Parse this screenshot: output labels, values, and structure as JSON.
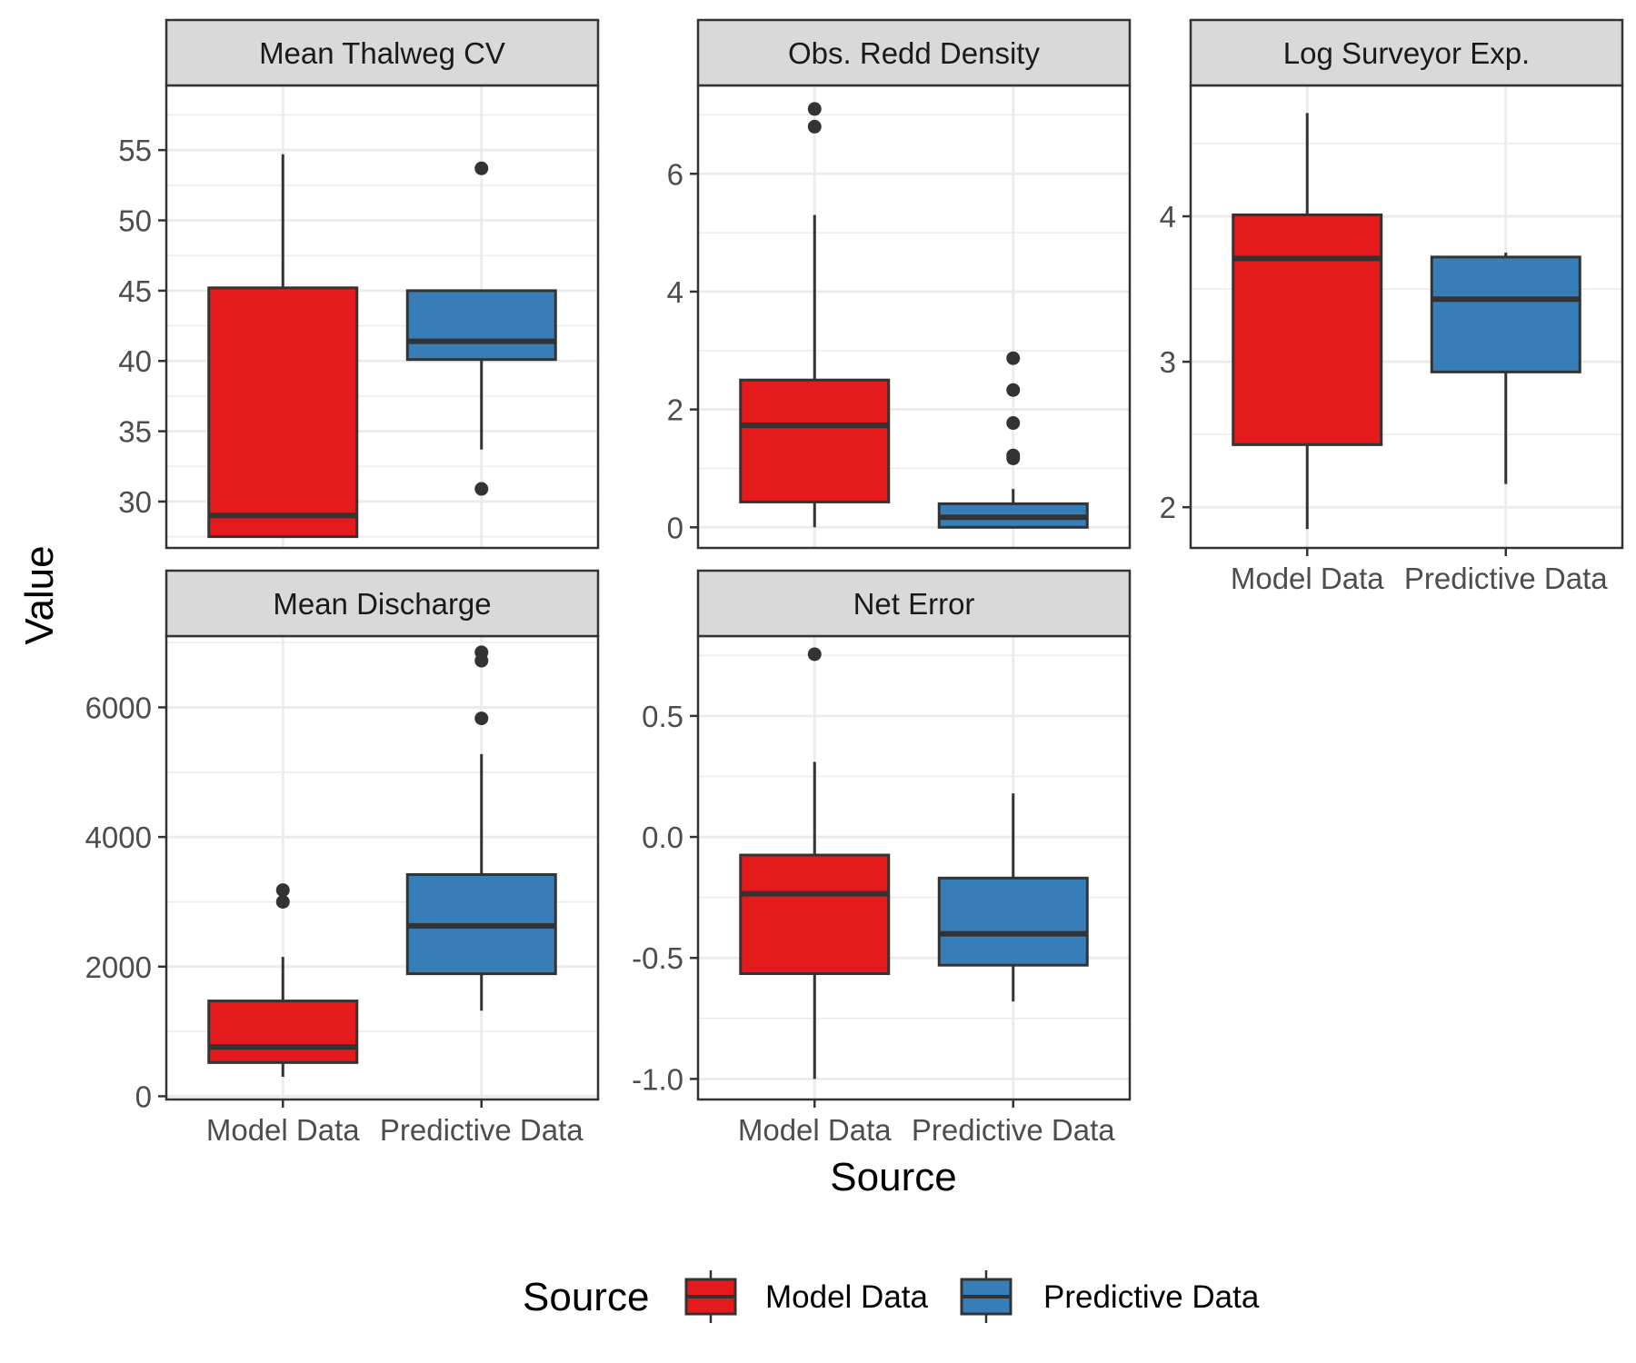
{
  "colors": {
    "model": "#e41a1c",
    "predictive": "#377eb8",
    "outline": "#333333",
    "strip_fill": "#d9d9d9",
    "grid": "#ebebeb"
  },
  "axes": {
    "xlabel": "Source",
    "ylabel": "Value"
  },
  "legend": {
    "title": "Source",
    "position": "bottom",
    "items": [
      {
        "label": "Model Data",
        "color": "#e41a1c"
      },
      {
        "label": "Predictive Data",
        "color": "#377eb8"
      }
    ]
  },
  "chart_data": {
    "type": "boxplot",
    "layout": "facet-wrap 3x2, free y scales",
    "grid": true,
    "categories": [
      "Model Data",
      "Predictive Data"
    ],
    "panels": [
      {
        "title": "Mean Thalweg CV",
        "ylim": [
          26.7,
          59.6
        ],
        "ticks": [
          30,
          35,
          40,
          45,
          50,
          55
        ],
        "tick_labels": [
          "30",
          "35",
          "40",
          "45",
          "50",
          "55"
        ],
        "show_x_labels": false,
        "boxes": [
          {
            "name": "Model Data",
            "lower_whisker": 27.5,
            "q1": 27.5,
            "median": 29.0,
            "q3": 45.2,
            "upper_whisker": 54.7,
            "outliers": []
          },
          {
            "name": "Predictive Data",
            "lower_whisker": 33.7,
            "q1": 40.1,
            "median": 41.4,
            "q3": 45.0,
            "upper_whisker": 45.0,
            "outliers": [
              53.7,
              30.9
            ]
          }
        ]
      },
      {
        "title": "Obs. Redd Density",
        "ylim": [
          -0.35,
          7.5
        ],
        "ticks": [
          0,
          2,
          4,
          6
        ],
        "tick_labels": [
          "0",
          "2",
          "4",
          "6"
        ],
        "show_x_labels": false,
        "boxes": [
          {
            "name": "Model Data",
            "lower_whisker": 0.0,
            "q1": 0.43,
            "median": 1.73,
            "q3": 2.5,
            "upper_whisker": 5.3,
            "outliers": [
              7.1,
              6.8
            ]
          },
          {
            "name": "Predictive Data",
            "lower_whisker": 0.0,
            "q1": 0.0,
            "median": 0.17,
            "q3": 0.4,
            "upper_whisker": 0.65,
            "outliers": [
              2.87,
              2.33,
              1.77,
              1.22,
              1.17
            ]
          }
        ]
      },
      {
        "title": "Log Surveyor Exp.",
        "ylim": [
          1.72,
          4.9
        ],
        "ticks": [
          2,
          3,
          4
        ],
        "tick_labels": [
          "2",
          "3",
          "4"
        ],
        "show_x_labels": true,
        "boxes": [
          {
            "name": "Model Data",
            "lower_whisker": 1.85,
            "q1": 2.43,
            "median": 3.71,
            "q3": 4.01,
            "upper_whisker": 4.71,
            "outliers": []
          },
          {
            "name": "Predictive Data",
            "lower_whisker": 2.16,
            "q1": 2.93,
            "median": 3.43,
            "q3": 3.72,
            "upper_whisker": 3.75,
            "outliers": []
          }
        ]
      },
      {
        "title": "Mean Discharge",
        "ylim": [
          -50,
          7100
        ],
        "ticks": [
          0,
          2000,
          4000,
          6000
        ],
        "tick_labels": [
          "0",
          "2000",
          "4000",
          "6000"
        ],
        "show_x_labels": true,
        "boxes": [
          {
            "name": "Model Data",
            "lower_whisker": 300,
            "q1": 520,
            "median": 760,
            "q3": 1470,
            "upper_whisker": 2150,
            "outliers": [
              3180,
              3000
            ]
          },
          {
            "name": "Predictive Data",
            "lower_whisker": 1320,
            "q1": 1890,
            "median": 2630,
            "q3": 3420,
            "upper_whisker": 5280,
            "outliers": [
              6850,
              6720,
              5830
            ]
          }
        ]
      },
      {
        "title": "Net Error",
        "ylim": [
          -1.085,
          0.83
        ],
        "ticks": [
          -1.0,
          -0.5,
          0.0,
          0.5
        ],
        "tick_labels": [
          "-1.0",
          "-0.5",
          "0.0",
          "0.5"
        ],
        "show_x_labels": true,
        "boxes": [
          {
            "name": "Model Data",
            "lower_whisker": -1.0,
            "q1": -0.565,
            "median": -0.235,
            "q3": -0.075,
            "upper_whisker": 0.31,
            "outliers": [
              0.755
            ]
          },
          {
            "name": "Predictive Data",
            "lower_whisker": -0.68,
            "q1": -0.53,
            "median": -0.4,
            "q3": -0.17,
            "upper_whisker": 0.18,
            "outliers": []
          }
        ]
      }
    ]
  }
}
